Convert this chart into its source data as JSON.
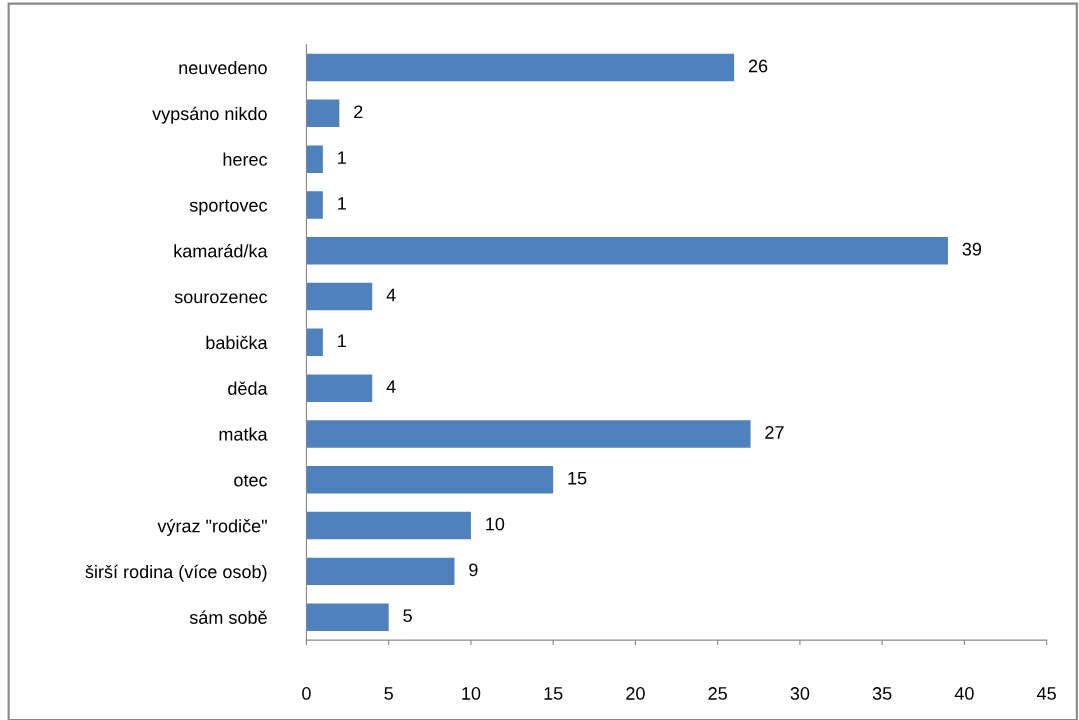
{
  "chart_data": {
    "type": "bar",
    "orientation": "horizontal",
    "categories": [
      "neuvedeno",
      "vypsáno nikdo",
      "herec",
      "sportovec",
      "kamarád/ka",
      "sourozenec",
      "babička",
      "děda",
      "matka",
      "otec",
      "výraz \"rodiče\"",
      "širší rodina (více osob)",
      "sám sobě"
    ],
    "values": [
      26,
      2,
      1,
      1,
      39,
      4,
      1,
      4,
      27,
      15,
      10,
      9,
      5
    ],
    "color": "#4f81bd",
    "xlim": [
      0,
      45
    ],
    "xticks": [
      0,
      5,
      10,
      15,
      20,
      25,
      30,
      35,
      40,
      45
    ],
    "data_labels": true,
    "grid": false,
    "legend": false
  }
}
